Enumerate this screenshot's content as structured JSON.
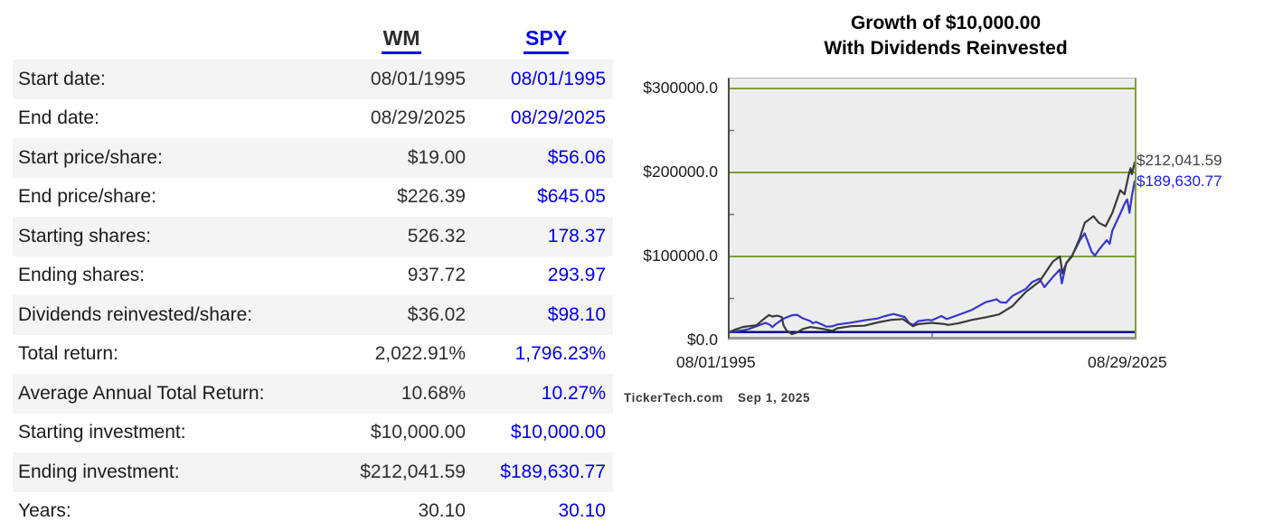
{
  "table": {
    "header": {
      "wm": "WM",
      "spy": "SPY"
    },
    "rows": [
      {
        "label": "Start date:",
        "wm": "08/01/1995",
        "spy": "08/01/1995"
      },
      {
        "label": "End date:",
        "wm": "08/29/2025",
        "spy": "08/29/2025"
      },
      {
        "label": "Start price/share:",
        "wm": "$19.00",
        "spy": "$56.06"
      },
      {
        "label": "End price/share:",
        "wm": "$226.39",
        "spy": "$645.05"
      },
      {
        "label": "Starting shares:",
        "wm": "526.32",
        "spy": "178.37"
      },
      {
        "label": "Ending shares:",
        "wm": "937.72",
        "spy": "293.97"
      },
      {
        "label": "Dividends reinvested/share:",
        "wm": "$36.02",
        "spy": "$98.10"
      },
      {
        "label": "Total return:",
        "wm": "2,022.91%",
        "spy": "1,796.23%"
      },
      {
        "label": "Average Annual Total Return:",
        "wm": "10.68%",
        "spy": "10.27%"
      },
      {
        "label": "Starting investment:",
        "wm": "$10,000.00",
        "spy": "$10,000.00"
      },
      {
        "label": "Ending investment:",
        "wm": "$212,041.59",
        "spy": "$189,630.77"
      },
      {
        "label": "Years:",
        "wm": "30.10",
        "spy": "30.10"
      }
    ]
  },
  "colors": {
    "link_blue": "#0000ee",
    "wm_line": "#3a3a3a",
    "spy_line": "#3535cf",
    "grid_green": "#7f9e3c",
    "baseline_navy": "#000099",
    "plot_background": "#ededed",
    "alt_row": "#f4f4f4"
  },
  "chart_data": {
    "type": "line",
    "title_line1": "Growth of $10,000.00",
    "title_line2": "With Dividends Reinvested",
    "x_range": [
      1995.583,
      2025.66
    ],
    "ylim": [
      0,
      311800
    ],
    "grid": true,
    "legend_position": "end-of-line-labels",
    "y_ticks": [
      {
        "label": "$300000.0",
        "value": 300000
      },
      {
        "label": "$200000.0",
        "value": 200000
      },
      {
        "label": "$100000.0",
        "value": 100000
      },
      {
        "label": "$0.0",
        "value": 0
      }
    ],
    "x_tick_labels": [
      "08/01/1995",
      "08/29/2025"
    ],
    "baseline_value": 10000,
    "series": [
      {
        "name": "WM",
        "color": "#3a3a3a",
        "end_label": "$212,041.59",
        "end_value": 212041.59,
        "points": [
          [
            1995.583,
            10000
          ],
          [
            1996.0,
            13000
          ],
          [
            1996.583,
            16100
          ],
          [
            1997.0,
            17000
          ],
          [
            1997.583,
            18100
          ],
          [
            1998.0,
            24000
          ],
          [
            1998.5,
            30200
          ],
          [
            1998.75,
            28500
          ],
          [
            1999.1,
            29500
          ],
          [
            1999.45,
            28000
          ],
          [
            1999.583,
            18000
          ],
          [
            1999.8,
            12000
          ],
          [
            2000.2,
            7500
          ],
          [
            2000.583,
            9500
          ],
          [
            2001.0,
            13500
          ],
          [
            2001.583,
            16000
          ],
          [
            2002.0,
            15000
          ],
          [
            2002.583,
            13500
          ],
          [
            2003.2,
            11500
          ],
          [
            2003.583,
            14500
          ],
          [
            2004.583,
            17000
          ],
          [
            2005.583,
            17500
          ],
          [
            2006.583,
            21500
          ],
          [
            2007.583,
            24500
          ],
          [
            2008.45,
            25500
          ],
          [
            2009.2,
            17000
          ],
          [
            2009.583,
            19500
          ],
          [
            2010.583,
            21000
          ],
          [
            2011.583,
            19500
          ],
          [
            2011.8,
            18500
          ],
          [
            2012.583,
            20500
          ],
          [
            2013.583,
            24500
          ],
          [
            2014.583,
            27500
          ],
          [
            2015.583,
            31000
          ],
          [
            2016.583,
            41000
          ],
          [
            2017.583,
            58000
          ],
          [
            2018.583,
            70000
          ],
          [
            2019.0,
            80000
          ],
          [
            2019.583,
            94000
          ],
          [
            2020.1,
            100000
          ],
          [
            2020.3,
            80000
          ],
          [
            2020.583,
            92000
          ],
          [
            2021.0,
            100000
          ],
          [
            2021.583,
            122000
          ],
          [
            2021.95,
            140000
          ],
          [
            2022.6,
            148000
          ],
          [
            2023.0,
            140000
          ],
          [
            2023.5,
            136000
          ],
          [
            2024.0,
            152000
          ],
          [
            2024.583,
            179000
          ],
          [
            2024.9,
            174000
          ],
          [
            2025.2,
            196000
          ],
          [
            2025.35,
            205000
          ],
          [
            2025.45,
            198000
          ],
          [
            2025.66,
            212041.59
          ]
        ]
      },
      {
        "name": "SPY",
        "color": "#3535cf",
        "end_label": "$189,630.77",
        "end_value": 189630.77,
        "points": [
          [
            1995.583,
            10000
          ],
          [
            1996.0,
            10800
          ],
          [
            1996.583,
            12100
          ],
          [
            1997.0,
            13500
          ],
          [
            1997.583,
            17000
          ],
          [
            1998.25,
            21000
          ],
          [
            1998.583,
            18600
          ],
          [
            1998.75,
            15800
          ],
          [
            1999.0,
            19500
          ],
          [
            1999.583,
            26000
          ],
          [
            2000.2,
            30000
          ],
          [
            2000.583,
            30500
          ],
          [
            2001.0,
            26500
          ],
          [
            2001.583,
            23000
          ],
          [
            2001.75,
            20500
          ],
          [
            2002.0,
            22000
          ],
          [
            2002.583,
            18000
          ],
          [
            2002.75,
            16500
          ],
          [
            2003.2,
            16800
          ],
          [
            2003.583,
            19000
          ],
          [
            2004.583,
            21200
          ],
          [
            2005.583,
            24000
          ],
          [
            2006.583,
            26100
          ],
          [
            2007.0,
            28500
          ],
          [
            2007.75,
            31500
          ],
          [
            2008.583,
            28000
          ],
          [
            2008.9,
            21000
          ],
          [
            2009.2,
            18500
          ],
          [
            2009.583,
            23000
          ],
          [
            2010.3,
            24500
          ],
          [
            2010.583,
            24000
          ],
          [
            2011.3,
            29000
          ],
          [
            2011.7,
            25500
          ],
          [
            2012.583,
            30500
          ],
          [
            2013.583,
            36500
          ],
          [
            2014.583,
            45500
          ],
          [
            2015.4,
            49000
          ],
          [
            2015.7,
            45500
          ],
          [
            2016.1,
            45000
          ],
          [
            2016.583,
            53000
          ],
          [
            2017.583,
            61500
          ],
          [
            2018.05,
            69500
          ],
          [
            2018.583,
            73500
          ],
          [
            2018.95,
            63500
          ],
          [
            2019.583,
            75500
          ],
          [
            2020.1,
            84500
          ],
          [
            2020.25,
            68000
          ],
          [
            2020.583,
            92500
          ],
          [
            2021.0,
            101000
          ],
          [
            2021.583,
            119000
          ],
          [
            2021.95,
            127500
          ],
          [
            2022.45,
            106000
          ],
          [
            2022.7,
            101000
          ],
          [
            2023.0,
            108000
          ],
          [
            2023.583,
            119500
          ],
          [
            2023.8,
            115000
          ],
          [
            2024.0,
            131000
          ],
          [
            2024.583,
            151000
          ],
          [
            2024.95,
            164000
          ],
          [
            2025.1,
            168000
          ],
          [
            2025.27,
            152000
          ],
          [
            2025.45,
            172000
          ],
          [
            2025.66,
            189630.77
          ]
        ]
      }
    ],
    "footer": {
      "source": "TickerTech.com",
      "date": "Sep 1, 2025"
    }
  }
}
